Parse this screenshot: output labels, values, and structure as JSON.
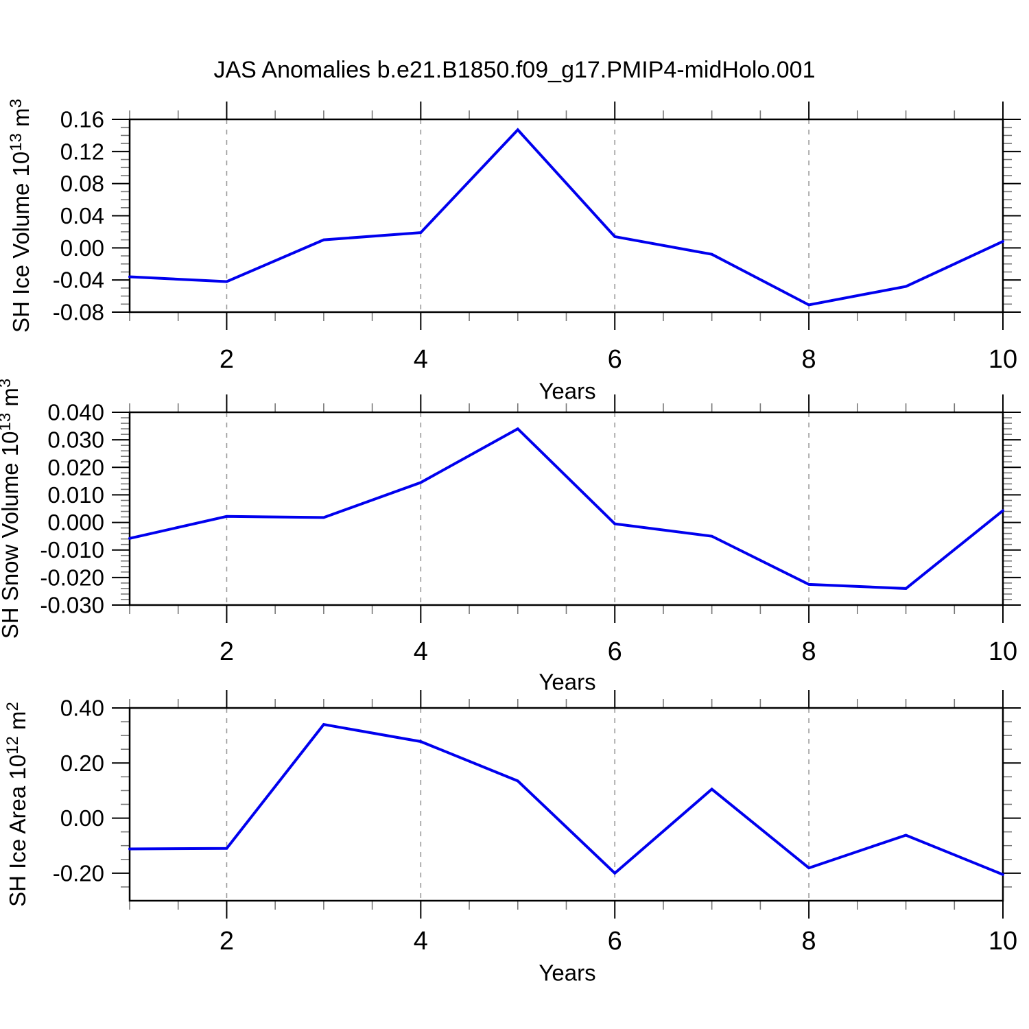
{
  "title": "JAS Anomalies b.e21.B1850.f09_g17.PMIP4-midHolo.001",
  "colors": {
    "line": "#0000ee",
    "grid": "#999999",
    "minor_tick": "#777777",
    "axis": "#000000",
    "text": "#000000",
    "background": "#ffffff"
  },
  "chart_data": [
    {
      "type": "line",
      "name": "sh-ice-volume",
      "ylabel": "SH Ice Volume 10^13 m^3",
      "ylabel_parts": [
        [
          "SH Ice Volume 10",
          0
        ],
        [
          "13",
          1
        ],
        [
          " m",
          0
        ],
        [
          "3",
          1
        ]
      ],
      "x": [
        1,
        2,
        3,
        4,
        5,
        6,
        7,
        8,
        9,
        10
      ],
      "values": [
        -0.036,
        -0.042,
        0.01,
        0.019,
        0.147,
        0.014,
        -0.008,
        -0.071,
        -0.048,
        0.008
      ],
      "ylim": [
        -0.08,
        0.16
      ],
      "ytick_step": 0.04,
      "ytick_labels": [
        "0.16",
        "0.12",
        "0.08",
        "0.04",
        "0.00",
        "-0.04",
        "-0.08"
      ],
      "yminor_step": 0.01,
      "xlim": [
        1,
        10
      ],
      "xticks": [
        2,
        4,
        6,
        8,
        10
      ],
      "xtick_labels": [
        "2",
        "4",
        "6",
        "8",
        "10"
      ],
      "xminor_step": 0.5,
      "grid_x": [
        2,
        4,
        6,
        8
      ],
      "xlabel": "Years",
      "grid": true
    },
    {
      "type": "line",
      "name": "sh-snow-volume",
      "ylabel": "SH Snow Volume 10^13 m^3",
      "ylabel_parts": [
        [
          "SH Snow Volume 10",
          0
        ],
        [
          "13",
          1
        ],
        [
          " m",
          0
        ],
        [
          "3",
          1
        ]
      ],
      "x": [
        1,
        2,
        3,
        4,
        5,
        6,
        7,
        8,
        9,
        10
      ],
      "values": [
        -0.0058,
        0.0022,
        0.0018,
        0.0145,
        0.034,
        -0.0005,
        -0.005,
        -0.0225,
        -0.024,
        0.0043
      ],
      "ylim": [
        -0.03,
        0.04
      ],
      "ytick_step": 0.01,
      "ytick_labels": [
        "0.040",
        "0.030",
        "0.020",
        "0.010",
        "0.000",
        "-0.010",
        "-0.020",
        "-0.030"
      ],
      "yminor_step": 0.002,
      "xlim": [
        1,
        10
      ],
      "xticks": [
        2,
        4,
        6,
        8,
        10
      ],
      "xtick_labels": [
        "2",
        "4",
        "6",
        "8",
        "10"
      ],
      "xminor_step": 0.5,
      "grid_x": [
        2,
        4,
        6,
        8
      ],
      "xlabel": "Years",
      "grid": true
    },
    {
      "type": "line",
      "name": "sh-ice-area",
      "ylabel": "SH Ice Area 10^12 m^2",
      "ylabel_parts": [
        [
          "SH Ice Area 10",
          0
        ],
        [
          "12",
          1
        ],
        [
          " m",
          0
        ],
        [
          "2",
          1
        ]
      ],
      "x": [
        1,
        2,
        3,
        4,
        5,
        6,
        7,
        8,
        9,
        10
      ],
      "values": [
        -0.112,
        -0.11,
        0.34,
        0.278,
        0.135,
        -0.2,
        0.105,
        -0.181,
        -0.062,
        -0.205
      ],
      "ylim": [
        -0.3,
        0.4
      ],
      "ytick_step": 0.2,
      "ytick_labels": [
        "0.40",
        "0.20",
        "0.00",
        "-0.20"
      ],
      "yminor_step": 0.05,
      "xlim": [
        1,
        10
      ],
      "xticks": [
        2,
        4,
        6,
        8,
        10
      ],
      "xtick_labels": [
        "2",
        "4",
        "6",
        "8",
        "10"
      ],
      "xminor_step": 0.5,
      "grid_x": [
        2,
        4,
        6,
        8
      ],
      "xlabel": "Years",
      "grid": true
    }
  ]
}
